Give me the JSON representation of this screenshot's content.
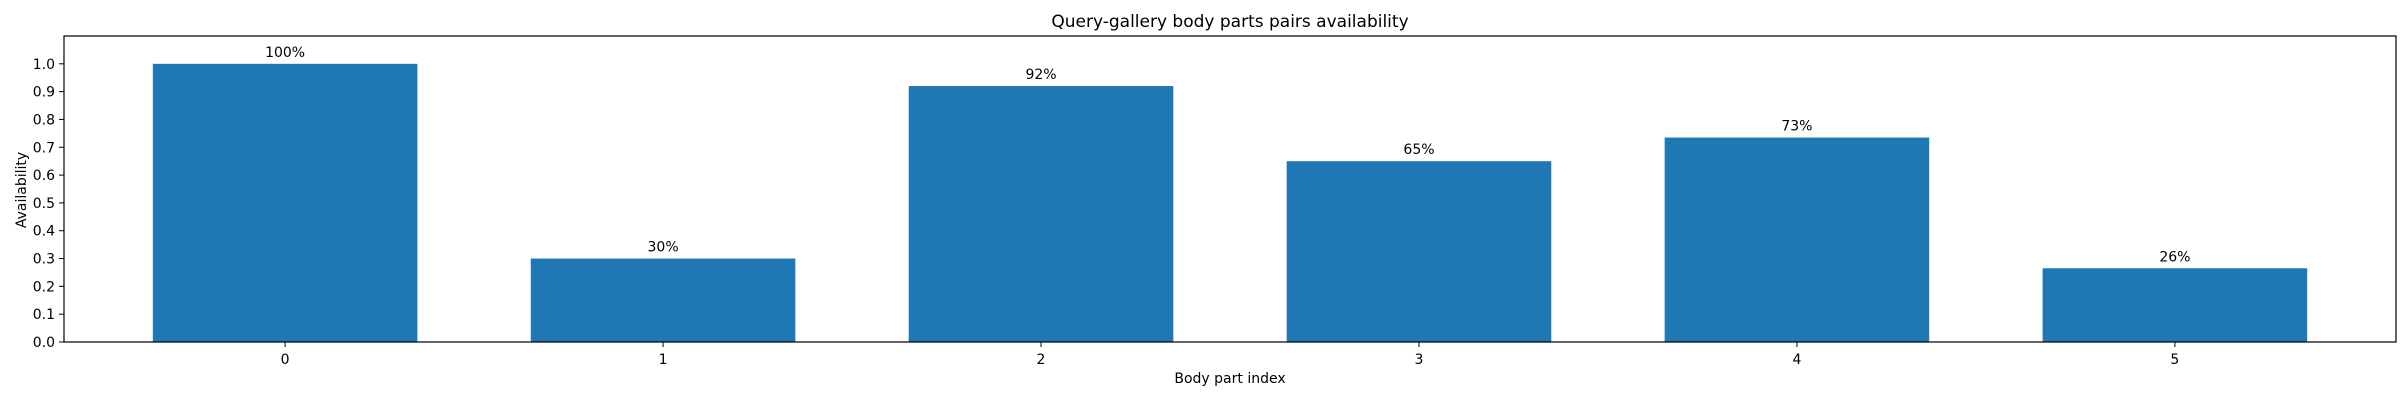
{
  "chart_data": {
    "type": "bar",
    "title": "Query-gallery body parts pairs availability",
    "xlabel": "Body part index",
    "ylabel": "Availability",
    "categories": [
      "0",
      "1",
      "2",
      "3",
      "4",
      "5"
    ],
    "values": [
      1.0,
      0.3,
      0.92,
      0.65,
      0.735,
      0.265
    ],
    "data_labels": [
      "100%",
      "30%",
      "92%",
      "65%",
      "73%",
      "26%"
    ],
    "ylim": [
      0,
      1.1
    ],
    "yticks": [
      "0.0",
      "0.1",
      "0.2",
      "0.3",
      "0.4",
      "0.5",
      "0.6",
      "0.7",
      "0.8",
      "0.9",
      "1.0"
    ],
    "grid": false,
    "bar_color": "#1f77b4"
  }
}
